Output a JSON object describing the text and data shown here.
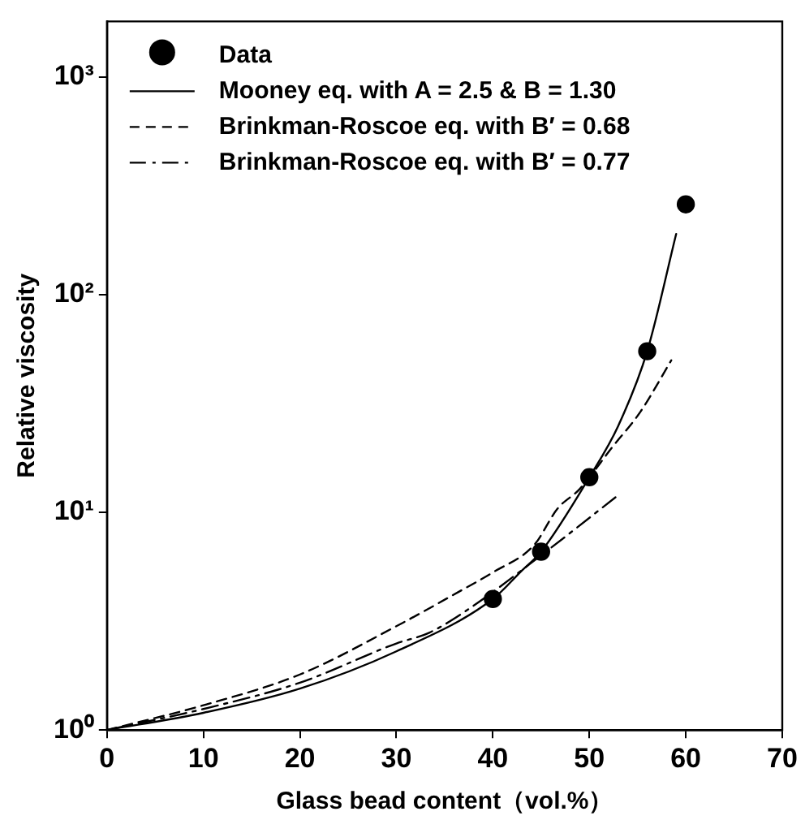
{
  "chart_data": {
    "type": "scatter",
    "xlabel": "Glass bead content（vol.%）",
    "ylabel": "Relative viscosity",
    "xlim": [
      0,
      70
    ],
    "xticks": [
      0,
      10,
      20,
      30,
      40,
      50,
      60,
      70
    ],
    "ylim": [
      1,
      1800
    ],
    "yticks": [
      {
        "value": 1,
        "label": "10⁰"
      },
      {
        "value": 10,
        "label": "10¹"
      },
      {
        "value": 100,
        "label": "10²"
      },
      {
        "value": 1000,
        "label": "10³"
      }
    ],
    "log": "y",
    "grid": false,
    "legend": "top left",
    "series": [
      {
        "name": "Data",
        "marker": "circle",
        "color": "#000000",
        "x": [
          40,
          45,
          50,
          56,
          60
        ],
        "values": [
          4.0,
          6.6,
          14.5,
          55,
          260
        ]
      },
      {
        "name": "Mooney eq. with A = 2.5 & B = 1.30",
        "type": "line",
        "line_style": "solid",
        "marker": "none",
        "color": "#000000",
        "x": [
          0,
          10,
          20,
          30,
          40,
          43,
          45,
          50,
          53,
          56,
          59
        ],
        "values": [
          1,
          1.2,
          1.55,
          2.3,
          4.0,
          5.4,
          6.6,
          14.5,
          25,
          55,
          190
        ]
      },
      {
        "name": "Brinkman-Roscoe eq. with B′ = 0.68",
        "type": "line",
        "line_style": "dashed",
        "marker": "none",
        "color": "#000000",
        "x": [
          0,
          10,
          20,
          30,
          36.4,
          40,
          44.3,
          46.7,
          49,
          52.4,
          55.3,
          58.5
        ],
        "values": [
          1,
          1.3,
          1.8,
          3.0,
          4.3,
          5.3,
          7.1,
          10.4,
          12.8,
          20,
          29,
          50
        ]
      },
      {
        "name": "Brinkman-Roscoe eq. with B′ = 0.77",
        "type": "line",
        "line_style": "dashed-dot",
        "marker": "none",
        "color": "#000000",
        "x": [
          0,
          10,
          20,
          30,
          33.4,
          37.5,
          45.5,
          53
        ],
        "values": [
          1,
          1.25,
          1.65,
          2.5,
          2.8,
          3.6,
          6.6,
          12
        ]
      }
    ]
  }
}
